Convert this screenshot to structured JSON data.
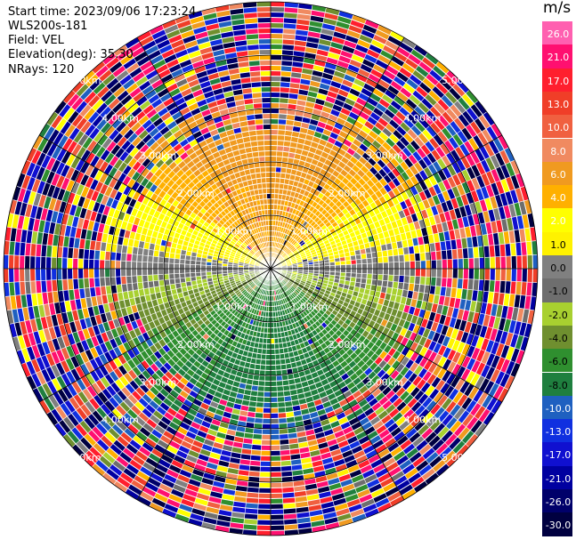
{
  "header": {
    "start_time": "Start time: 2023/09/06 17:23:24",
    "instrument": "WLS200s-181",
    "field": "Field: VEL",
    "elevation": "Elevation(deg): 35.30",
    "nrays": "NRays: 120"
  },
  "chart_data": {
    "type": "heatmap",
    "projection": "polar (PPI)",
    "nrays": 120,
    "range_rings_km": [
      1,
      2,
      3,
      4,
      5
    ],
    "ring_label_text": [
      "1.00km",
      "2.00km",
      "3.00km",
      "4.00km",
      "5.00km"
    ],
    "colorbar": {
      "unit": "m/s",
      "levels": [
        "26.0",
        "21.0",
        "17.0",
        "13.0",
        "10.0",
        "8.0",
        "6.0",
        "4.0",
        "2.0",
        "1.0",
        "0.0",
        "-1.0",
        "-2.0",
        "-4.0",
        "-6.0",
        "-8.0",
        "-10.0",
        "-13.0",
        "-17.0",
        "-21.0",
        "-26.0",
        "-30.0"
      ],
      "colors": [
        "#ff60b0",
        "#ff1070",
        "#ff1f2e",
        "#f03e28",
        "#f06040",
        "#f08a60",
        "#f09a20",
        "#ffb000",
        "#ffff00",
        "#fff200",
        "#808080",
        "#6e6e6e",
        "#a8d030",
        "#6f8f2f",
        "#2f8f2f",
        "#1f7f3f",
        "#1f60c0",
        "#1030e0",
        "#1010d0",
        "#0000a0",
        "#00006a",
        "#000040"
      ]
    },
    "velocity_pattern": "positive (yellow/orange) north, negative (green) south, near-zero (gray) along east-west axis, noisy values beyond ~3 km"
  }
}
